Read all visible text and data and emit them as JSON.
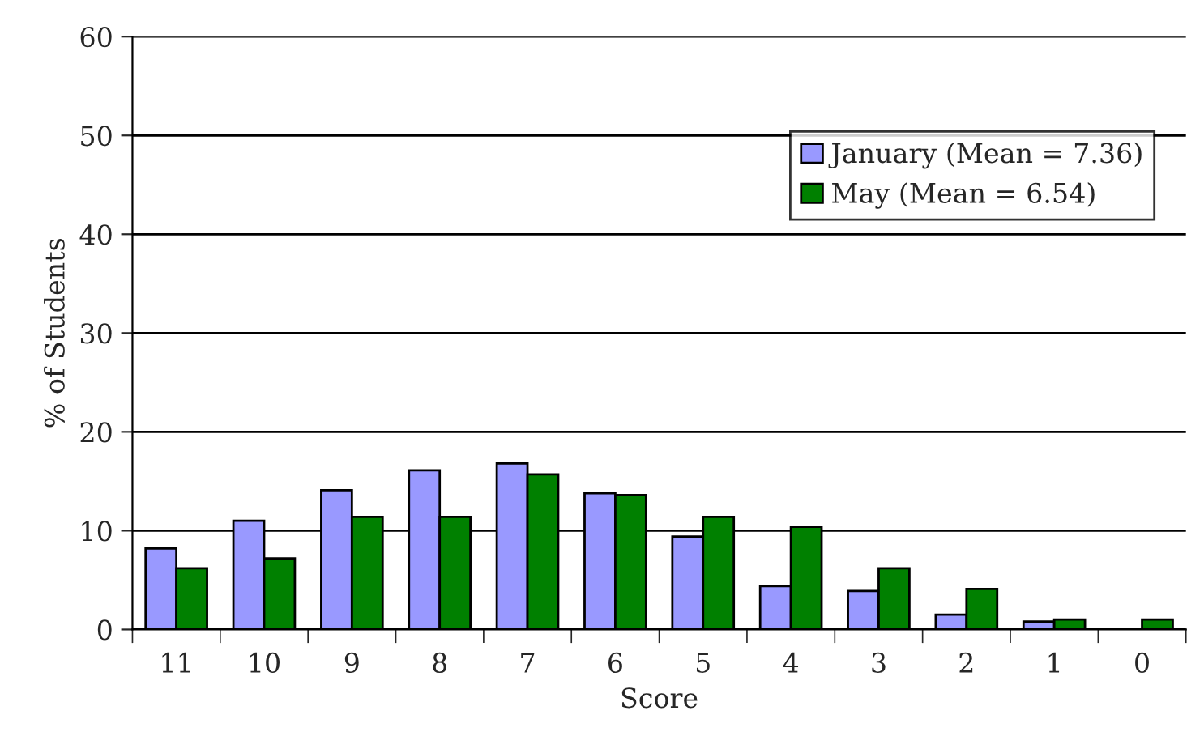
{
  "chart_data": {
    "type": "bar",
    "xlabel": "Score",
    "ylabel": "% of Students",
    "categories": [
      "11",
      "10",
      "9",
      "8",
      "7",
      "6",
      "5",
      "4",
      "3",
      "2",
      "1",
      "0"
    ],
    "series": [
      {
        "name": "January (Mean = 7.36)",
        "color": "#9999ff",
        "values": [
          8.2,
          11.0,
          14.1,
          16.1,
          16.8,
          13.8,
          9.4,
          4.4,
          3.9,
          1.5,
          0.8,
          null
        ]
      },
      {
        "name": "May (Mean = 6.54)",
        "color": "#008000",
        "values": [
          6.2,
          7.2,
          11.4,
          11.4,
          15.7,
          13.6,
          11.4,
          10.4,
          6.2,
          4.1,
          1.0,
          1.0
        ]
      }
    ],
    "ylim": [
      0,
      60
    ],
    "yticks": [
      0,
      10,
      20,
      30,
      40,
      50,
      60
    ],
    "grid": "y",
    "legend": "top right"
  }
}
